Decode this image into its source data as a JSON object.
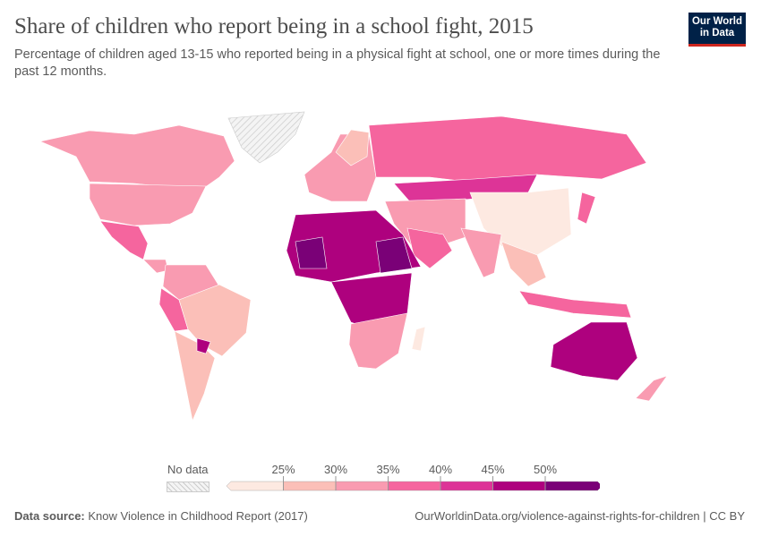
{
  "header": {
    "title": "Share of children who report being in a school fight, 2015",
    "subtitle": "Percentage of children aged 13-15 who reported being in a physical fight at school, one or more times during the past 12 months.",
    "logo": "Our World in Data"
  },
  "legend": {
    "no_data_label": "No data",
    "ticks": [
      "25%",
      "30%",
      "35%",
      "40%",
      "45%",
      "50%"
    ],
    "colors": [
      "#fde9e1",
      "#fbbfb8",
      "#f99bb1",
      "#f5659e",
      "#dd3497",
      "#ae017e",
      "#7a0177"
    ],
    "no_data_color": "#e8e8e8"
  },
  "footer": {
    "source_label": "Data source:",
    "source": "Know Violence in Childhood Report (2017)",
    "url": "OurWorldinData.org/violence-against-rights-for-children | CC BY"
  }
}
